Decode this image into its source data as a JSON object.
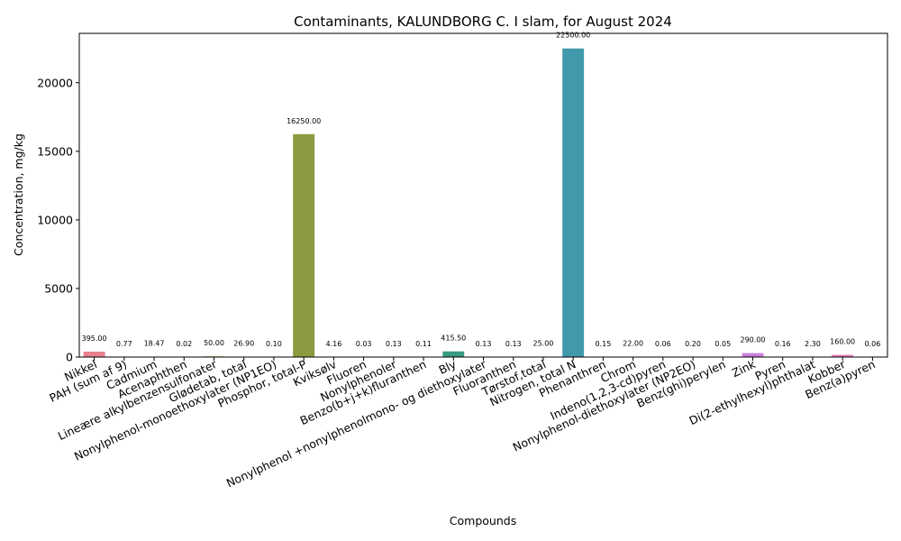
{
  "chart_data": {
    "type": "bar",
    "title": "Contaminants, KALUNDBORG C. I slam, for August 2024",
    "xlabel": "Compounds",
    "ylabel": "Concentration, mg/kg",
    "ylim": [
      0,
      23600
    ],
    "yticks": [
      0,
      5000,
      10000,
      15000,
      20000
    ],
    "grid": false,
    "categories": [
      "Nikkel",
      "PAH (sum af 9)",
      "Cadmium",
      "Acenaphthen",
      "Lineære alkylbenzensulfonater",
      "Glødetab, total",
      "Nonylphenol-monoethoxylater (NP1EO)",
      "Phosphor, total-P",
      "Kviksølv",
      "Fluoren",
      "Nonylphenoler",
      "Benzo(b+j+k)fluranthen",
      "Bly",
      "Nonylphenol +nonylphenolmono- og diethoxylater",
      "Fluoranthen",
      "Tørstof,total",
      "Nitrogen, total N",
      "Phenanthren",
      "Chrom",
      "Indeno(1,2,3-cd)pyren",
      "Nonylphenol-diethoxylater (NP2EO)",
      "Benz(ghi)perylen",
      "Zink",
      "Pyren",
      "Di(2-ethylhexyl)phthalat",
      "Kobber",
      "Benz(a)pyren"
    ],
    "values": [
      395.0,
      0.77,
      18.47,
      0.02,
      50.0,
      26.9,
      0.1,
      16250.0,
      4.16,
      0.03,
      0.13,
      0.11,
      415.5,
      0.13,
      0.13,
      25.0,
      22500.0,
      0.15,
      22.0,
      0.06,
      0.2,
      0.05,
      290.0,
      0.16,
      2.3,
      160.0,
      0.06
    ],
    "value_labels": [
      "395.00",
      "0.77",
      "18.47",
      "0.02",
      "50.00",
      "26.90",
      "0.10",
      "16250.00",
      "4.16",
      "0.03",
      "0.13",
      "0.11",
      "415.50",
      "0.13",
      "0.13",
      "25.00",
      "22500.00",
      "0.15",
      "22.00",
      "0.06",
      "0.20",
      "0.05",
      "290.00",
      "0.16",
      "2.30",
      "160.00",
      "0.06"
    ],
    "colors": [
      "#e8808f",
      "#e5897a",
      "#d9915e",
      "#c99b52",
      "#b8a24d",
      "#a8a64b",
      "#9aa74a",
      "#8a9b40",
      "#78ad52",
      "#5fb25a",
      "#4ab173",
      "#3fae84",
      "#3a9b80",
      "#3bab98",
      "#3dab9f",
      "#3faea7",
      "#4299ab",
      "#46a9b8",
      "#4ca6c3",
      "#55a0cf",
      "#6e9ad8",
      "#8d93de",
      "#cc7fe0",
      "#d47cd0",
      "#dc79c0",
      "#e07bb0",
      "#e4809f"
    ]
  }
}
